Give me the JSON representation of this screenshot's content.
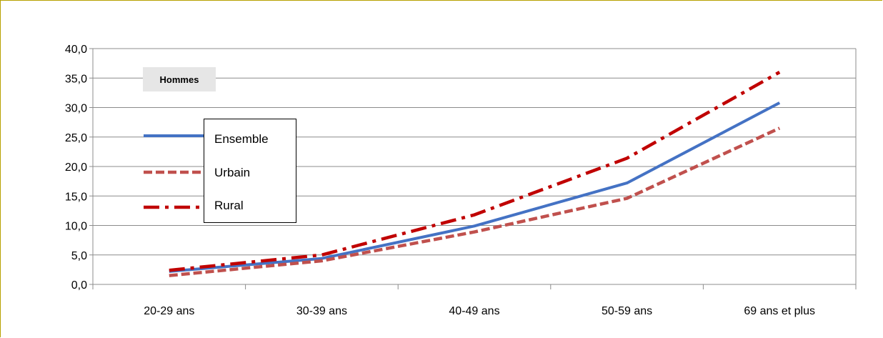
{
  "panel_label": "Hommes",
  "chart_data": {
    "type": "line",
    "categories": [
      "20-29 ans",
      "30-39 ans",
      "40-49 ans",
      "50-59 ans",
      "69 ans et plus"
    ],
    "series": [
      {
        "name": "Ensemble",
        "values": [
          2.2,
          4.4,
          9.9,
          17.2,
          30.8
        ],
        "color": "#4472c4",
        "style": "solid"
      },
      {
        "name": "Urbain",
        "values": [
          1.5,
          4.0,
          8.9,
          14.6,
          26.5
        ],
        "color": "#c0504d",
        "style": "dashed"
      },
      {
        "name": "Rural",
        "values": [
          2.4,
          5.0,
          11.8,
          21.4,
          36.0
        ],
        "color": "#c00000",
        "style": "dash-dot"
      }
    ],
    "yticks": [
      "0,0",
      "5,0",
      "10,0",
      "15,0",
      "20,0",
      "25,0",
      "30,0",
      "35,0",
      "40,0"
    ],
    "ylim": [
      0,
      40
    ],
    "grid": true,
    "legend_position": "left inside plot"
  }
}
